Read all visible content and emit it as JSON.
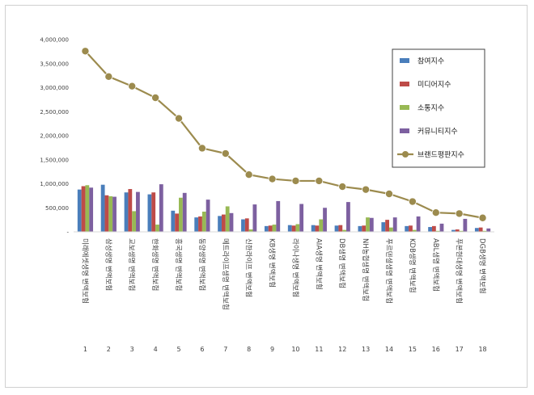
{
  "chart_data": {
    "type": "bar",
    "title": "",
    "xlabel": "",
    "ylabel": "",
    "ylim": [
      0,
      4000000
    ],
    "yticks": [
      "-",
      "500,000",
      "1,000,000",
      "1,500,000",
      "2,000,000",
      "2,500,000",
      "3,000,000",
      "3,500,000",
      "4,000,000"
    ],
    "grid": false,
    "legend_position": "top-right",
    "categories": [
      "미래에셋생명 변액보험",
      "삼성생명 변액보험",
      "교보생명 변액보험",
      "한화생명 변액보험",
      "흥국생명 변액보험",
      "동양생명 변액보험",
      "메트라이프생명 변액보험",
      "신한라이프 변액보험",
      "KB생명 변액보험",
      "라이나생명 변액보험",
      "AIA생명 변액보험",
      "DB생명 변액보험",
      "NH농협생명 변액보험",
      "푸르덴셜생명 변액보험",
      "KDB생명 변액보험",
      "ABL생명 변액보험",
      "푸본현대생명 변액보험",
      "DGB생명 변액보험"
    ],
    "ranks": [
      "1",
      "2",
      "3",
      "4",
      "5",
      "6",
      "7",
      "8",
      "9",
      "10",
      "11",
      "12",
      "13",
      "14",
      "15",
      "16",
      "17",
      "18"
    ],
    "series": [
      {
        "name": "참여지수",
        "kind": "bar",
        "color": "#4a7ebb",
        "values": [
          880000,
          980000,
          820000,
          780000,
          440000,
          300000,
          330000,
          260000,
          120000,
          140000,
          140000,
          130000,
          120000,
          200000,
          120000,
          100000,
          40000,
          80000
        ]
      },
      {
        "name": "미디어지수",
        "kind": "bar",
        "color": "#be4b48",
        "values": [
          950000,
          760000,
          890000,
          820000,
          380000,
          320000,
          360000,
          280000,
          130000,
          130000,
          130000,
          140000,
          130000,
          250000,
          130000,
          120000,
          50000,
          90000
        ]
      },
      {
        "name": "소통지수",
        "kind": "bar",
        "color": "#98b954",
        "values": [
          970000,
          740000,
          430000,
          150000,
          710000,
          420000,
          530000,
          50000,
          150000,
          160000,
          260000,
          40000,
          300000,
          90000,
          40000,
          20000,
          20000,
          20000
        ]
      },
      {
        "name": "커뮤니티지수",
        "kind": "bar",
        "color": "#7d60a0",
        "values": [
          920000,
          730000,
          830000,
          990000,
          810000,
          670000,
          390000,
          570000,
          640000,
          580000,
          500000,
          620000,
          290000,
          300000,
          320000,
          170000,
          270000,
          70000
        ]
      },
      {
        "name": "브랜드평판지수",
        "kind": "line",
        "color": "#9c8b4e",
        "values": [
          3760000,
          3230000,
          3030000,
          2790000,
          2360000,
          1740000,
          1630000,
          1190000,
          1100000,
          1060000,
          1060000,
          940000,
          880000,
          790000,
          630000,
          400000,
          380000,
          290000
        ]
      }
    ]
  }
}
